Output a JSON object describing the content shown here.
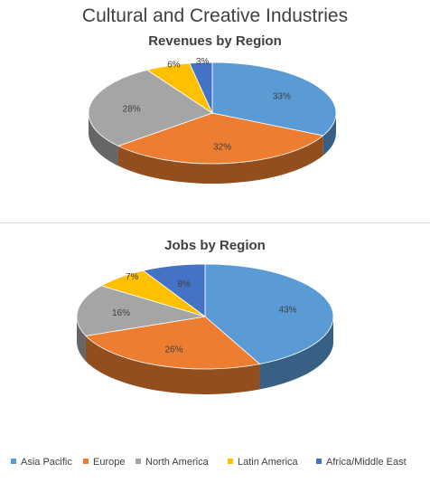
{
  "page_title": "Cultural and Creative Industries",
  "chart_data": [
    {
      "type": "pie",
      "title": "Revenues by Region",
      "categories": [
        "Asia Pacific",
        "Europe",
        "North America",
        "Latin America",
        "Africa/Middle East"
      ],
      "values": [
        33,
        32,
        28,
        6,
        3
      ],
      "labels": [
        "33%",
        "32%",
        "28%",
        "6%",
        "3%"
      ],
      "legend": "bottom"
    },
    {
      "type": "pie",
      "title": "Jobs by Region",
      "categories": [
        "Asia Pacific",
        "Europe",
        "North America",
        "Latin America",
        "Africa/Middle East"
      ],
      "values": [
        43,
        26,
        16,
        7,
        8
      ],
      "labels": [
        "43%",
        "26%",
        "16%",
        "7%",
        "8%"
      ],
      "legend": "bottom"
    }
  ],
  "legend": [
    {
      "label": "Asia Pacific",
      "color": "#5B9BD5"
    },
    {
      "label": "Europe",
      "color": "#ED7D31"
    },
    {
      "label": "North America",
      "color": "#A5A5A5"
    },
    {
      "label": "Latin America",
      "color": "#FFC000"
    },
    {
      "label": "Africa/Middle East",
      "color": "#4472C4"
    }
  ]
}
